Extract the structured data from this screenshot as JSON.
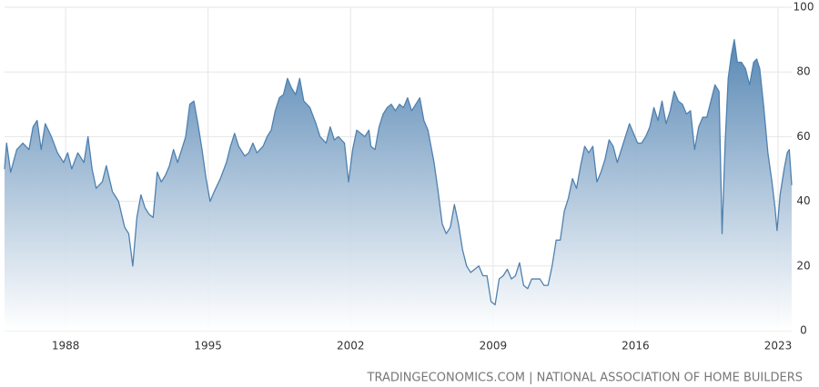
{
  "chart_data": {
    "type": "area",
    "source": "TRADINGECONOMICS.COM | NATIONAL ASSOCIATION OF HOME BUILDERS",
    "color": "#4f81b0",
    "x": [
      1985.0,
      1985.1,
      1985.3,
      1985.6,
      1985.9,
      1986.2,
      1986.4,
      1986.6,
      1986.8,
      1987.0,
      1987.3,
      1987.6,
      1987.9,
      1988.1,
      1988.3,
      1988.6,
      1988.9,
      1989.1,
      1989.3,
      1989.5,
      1989.8,
      1990.0,
      1990.3,
      1990.6,
      1990.9,
      1991.1,
      1991.3,
      1991.5,
      1991.7,
      1991.9,
      1992.1,
      1992.3,
      1992.5,
      1992.7,
      1992.9,
      1993.1,
      1993.3,
      1993.5,
      1993.7,
      1993.9,
      1994.1,
      1994.3,
      1994.5,
      1994.7,
      1994.9,
      1995.1,
      1995.3,
      1995.6,
      1995.9,
      1996.1,
      1996.3,
      1996.5,
      1996.8,
      1997.0,
      1997.2,
      1997.4,
      1997.7,
      1997.9,
      1998.1,
      1998.3,
      1998.5,
      1998.7,
      1998.9,
      1999.1,
      1999.3,
      1999.5,
      1999.7,
      2000.0,
      2000.3,
      2000.5,
      2000.8,
      2001.0,
      2001.2,
      2001.4,
      2001.7,
      2001.9,
      2002.1,
      2002.3,
      2002.5,
      2002.7,
      2002.9,
      2003.0,
      2003.2,
      2003.4,
      2003.6,
      2003.8,
      2004.0,
      2004.2,
      2004.4,
      2004.6,
      2004.8,
      2005.0,
      2005.2,
      2005.4,
      2005.6,
      2005.8,
      2006.1,
      2006.3,
      2006.5,
      2006.7,
      2006.9,
      2007.1,
      2007.3,
      2007.5,
      2007.7,
      2007.9,
      2008.1,
      2008.3,
      2008.5,
      2008.7,
      2008.9,
      2009.1,
      2009.3,
      2009.5,
      2009.7,
      2009.9,
      2010.1,
      2010.3,
      2010.5,
      2010.7,
      2010.9,
      2011.1,
      2011.3,
      2011.5,
      2011.7,
      2011.9,
      2012.1,
      2012.3,
      2012.5,
      2012.7,
      2012.9,
      2013.1,
      2013.3,
      2013.5,
      2013.7,
      2013.9,
      2014.1,
      2014.3,
      2014.5,
      2014.7,
      2014.9,
      2015.1,
      2015.3,
      2015.5,
      2015.7,
      2015.9,
      2016.1,
      2016.3,
      2016.5,
      2016.7,
      2016.9,
      2017.1,
      2017.3,
      2017.5,
      2017.7,
      2017.9,
      2018.1,
      2018.3,
      2018.5,
      2018.7,
      2018.9,
      2019.1,
      2019.3,
      2019.5,
      2019.7,
      2019.9,
      2020.1,
      2020.25,
      2020.4,
      2020.55,
      2020.7,
      2020.85,
      2021.0,
      2021.2,
      2021.4,
      2021.6,
      2021.8,
      2021.95,
      2022.1,
      2022.3,
      2022.5,
      2022.7,
      2022.85,
      2022.95,
      2023.1,
      2023.3,
      2023.45,
      2023.55,
      2023.67
    ],
    "values": [
      50,
      58,
      49,
      56,
      58,
      56,
      63,
      65,
      56,
      64,
      60,
      55,
      52,
      55,
      50,
      55,
      52,
      60,
      50,
      44,
      46,
      51,
      43,
      40,
      32,
      30,
      20,
      35,
      42,
      38,
      36,
      35,
      49,
      46,
      48,
      51,
      56,
      52,
      56,
      60,
      70,
      71,
      64,
      56,
      47,
      40,
      43,
      47,
      52,
      57,
      61,
      57,
      54,
      55,
      58,
      55,
      57,
      60,
      62,
      68,
      72,
      73,
      78,
      75,
      73,
      78,
      71,
      69,
      64,
      60,
      58,
      63,
      59,
      60,
      58,
      46,
      56,
      62,
      61,
      60,
      62,
      57,
      56,
      63,
      67,
      69,
      70,
      68,
      70,
      69,
      72,
      68,
      70,
      72,
      65,
      62,
      52,
      43,
      33,
      30,
      32,
      39,
      33,
      25,
      20,
      18,
      19,
      20,
      17,
      17,
      9,
      8,
      16,
      17,
      19,
      16,
      17,
      21,
      14,
      13,
      16,
      16,
      16,
      14,
      14,
      20,
      28,
      28,
      37,
      41,
      47,
      44,
      51,
      57,
      55,
      57,
      46,
      49,
      53,
      59,
      57,
      52,
      56,
      60,
      64,
      61,
      58,
      58,
      60,
      63,
      69,
      65,
      71,
      64,
      68,
      74,
      71,
      70,
      67,
      68,
      56,
      63,
      66,
      66,
      71,
      76,
      74,
      30,
      58,
      78,
      85,
      90,
      83,
      83,
      81,
      76,
      83,
      84,
      81,
      69,
      55,
      46,
      38,
      31,
      42,
      50,
      55,
      56,
      45
    ],
    "xlim": [
      1985.0,
      2023.67
    ],
    "xticks": [
      1988,
      1995,
      2002,
      2009,
      2016,
      2023
    ],
    "ylim": [
      0,
      100
    ],
    "yticks": [
      0,
      20,
      40,
      60,
      80,
      100
    ],
    "grid": true
  }
}
